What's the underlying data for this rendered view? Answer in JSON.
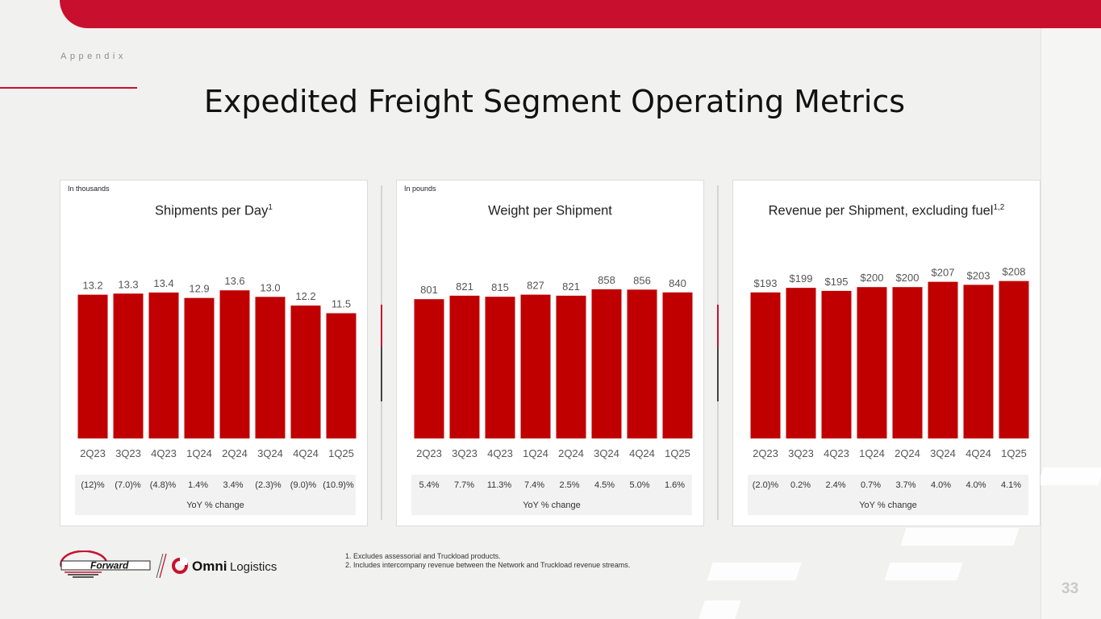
{
  "page": {
    "section": "Appendix",
    "title": "Expedited Freight Segment Operating Metrics",
    "page_number": "33",
    "yoy_label": "YoY % change"
  },
  "footnotes": [
    "1.  Excludes assessorial and Truckload products.",
    "2.  Includes intercompany revenue between the Network and Truckload revenue streams."
  ],
  "logos": {
    "forward": "Forward",
    "omni_bold": "Omni",
    "omni_light": "Logistics"
  },
  "colors": {
    "brand_red": "#c8102e",
    "bar": "#c00000"
  },
  "chart_data": [
    {
      "type": "bar",
      "unit_label": "In thousands",
      "title": "Shipments per Day",
      "title_sup": "1",
      "categories": [
        "2Q23",
        "3Q23",
        "4Q23",
        "1Q24",
        "2Q24",
        "3Q24",
        "4Q24",
        "1Q25"
      ],
      "values": [
        13.2,
        13.3,
        13.4,
        12.9,
        13.6,
        13.0,
        12.2,
        11.5
      ],
      "value_labels": [
        "13.2",
        "13.3",
        "13.4",
        "12.9",
        "13.6",
        "13.0",
        "12.2",
        "11.5"
      ],
      "yoy": [
        "(12)%",
        "(7.0)%",
        "(4.8)%",
        "1.4%",
        "3.4%",
        "(2.3)%",
        "(9.0)%",
        "(10.9)%"
      ],
      "ylim": [
        0,
        14.8
      ]
    },
    {
      "type": "bar",
      "unit_label": "In pounds",
      "title": "Weight per Shipment",
      "title_sup": "",
      "categories": [
        "2Q23",
        "3Q23",
        "4Q23",
        "1Q24",
        "2Q24",
        "3Q24",
        "4Q24",
        "1Q25"
      ],
      "values": [
        801,
        821,
        815,
        827,
        821,
        858,
        856,
        840
      ],
      "value_labels": [
        "801",
        "821",
        "815",
        "827",
        "821",
        "858",
        "856",
        "840"
      ],
      "yoy": [
        "5.4%",
        "7.7%",
        "11.3%",
        "7.4%",
        "2.5%",
        "4.5%",
        "5.0%",
        "1.6%"
      ],
      "ylim": [
        0,
        927
      ]
    },
    {
      "type": "bar",
      "unit_label": "",
      "title": "Revenue per Shipment, excluding fuel",
      "title_sup": "1,2",
      "categories": [
        "2Q23",
        "3Q23",
        "4Q23",
        "1Q24",
        "2Q24",
        "3Q24",
        "4Q24",
        "1Q25"
      ],
      "values": [
        193,
        199,
        195,
        200,
        200,
        207,
        203,
        208
      ],
      "value_labels": [
        "$193",
        "$199",
        "$195",
        "$200",
        "$200",
        "$207",
        "$203",
        "$208"
      ],
      "yoy": [
        "(2.0)%",
        "0.2%",
        "2.4%",
        "0.7%",
        "3.7%",
        "4.0%",
        "4.0%",
        "4.1%"
      ],
      "ylim": [
        0,
        213
      ]
    }
  ]
}
